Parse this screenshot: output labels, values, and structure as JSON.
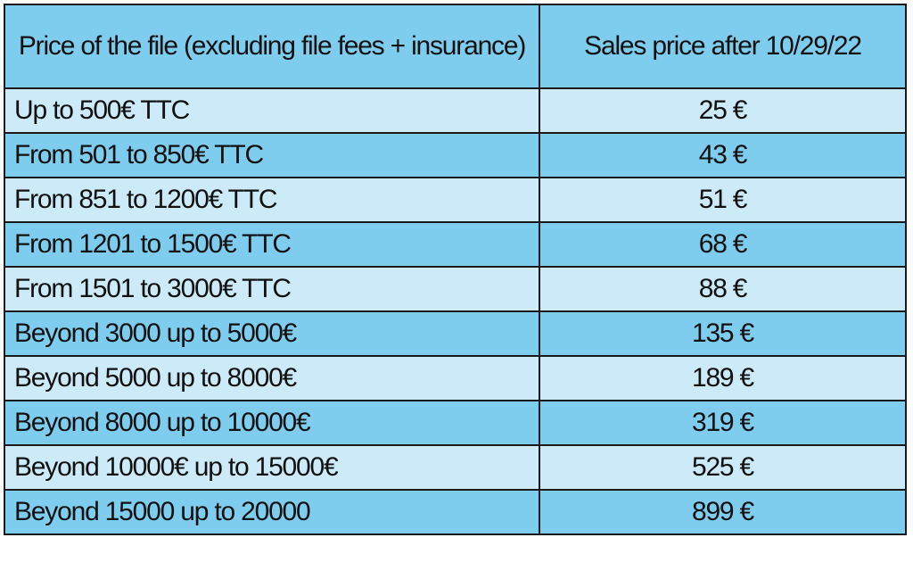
{
  "table": {
    "headers": {
      "range": "Price of the file (excluding file fees + insurance)",
      "price": "Sales price after 10/29/22"
    },
    "rows": [
      {
        "range": "Up to 500€ TTC",
        "price": "25 €"
      },
      {
        "range": "From 501 to 850€ TTC",
        "price": "43 €"
      },
      {
        "range": "From 851 to 1200€ TTC",
        "price": "51 €"
      },
      {
        "range": "From 1201 to 1500€ TTC",
        "price": "68 €"
      },
      {
        "range": "From 1501 to 3000€ TTC",
        "price": "88 €"
      },
      {
        "range": "Beyond 3000 up to 5000€",
        "price": "135 €"
      },
      {
        "range": "Beyond 5000 up to 8000€",
        "price": "189 €"
      },
      {
        "range": "Beyond 8000 up to 10000€",
        "price": "319 €"
      },
      {
        "range": "Beyond 10000€ up to 15000€",
        "price": "525 €"
      },
      {
        "range": "Beyond 15000 up to 20000",
        "price": "899 €"
      }
    ]
  },
  "colors": {
    "header_bg": "#7fcdee",
    "row_light": "#cceaf8",
    "row_dark": "#7fcdee",
    "border": "#1a1a1a"
  }
}
